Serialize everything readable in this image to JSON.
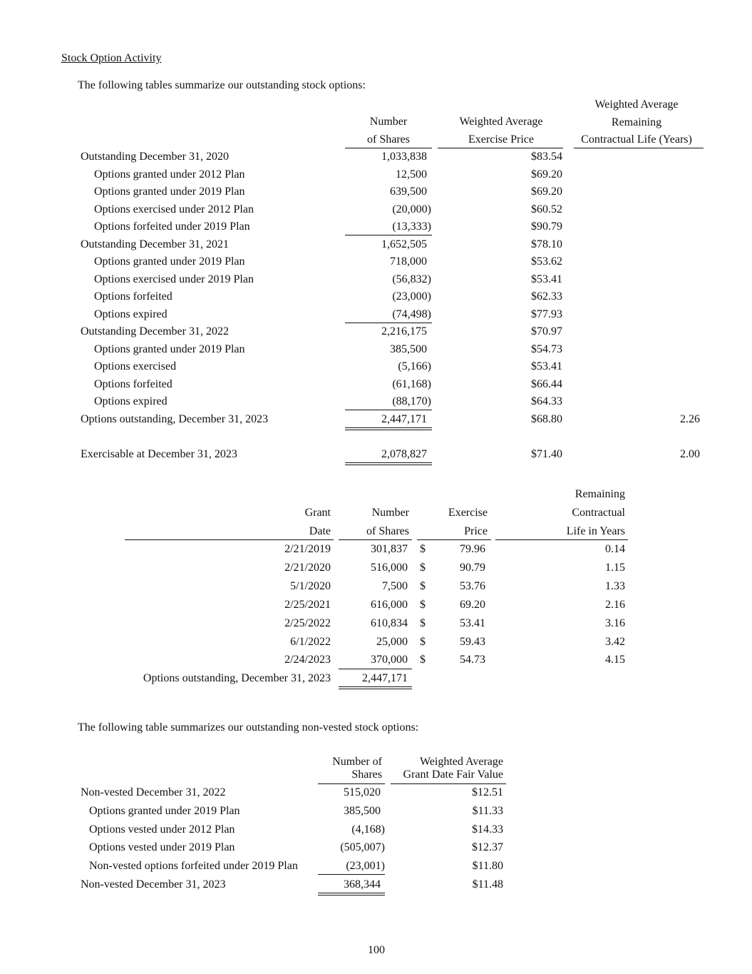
{
  "title": "Stock Option Activity",
  "intro1": "The following tables summarize our outstanding stock options:",
  "table1": {
    "headers": {
      "shares": [
        "Number",
        "of Shares"
      ],
      "price": [
        "Weighted Average",
        "Exercise Price"
      ],
      "life": [
        "Weighted Average",
        "Remaining",
        "Contractual Life (Years)"
      ]
    },
    "rows": [
      {
        "label": "Outstanding December 31, 2020",
        "indent": false,
        "shares": "1,033,838",
        "price": "$83.54",
        "life": ""
      },
      {
        "label": "Options granted under 2012 Plan",
        "indent": true,
        "shares": "12,500",
        "price": "$69.20",
        "life": ""
      },
      {
        "label": "Options granted under 2019 Plan",
        "indent": true,
        "shares": "639,500",
        "price": "$69.20",
        "life": ""
      },
      {
        "label": "Options exercised under 2012 Plan",
        "indent": true,
        "shares": "(20,000)",
        "price": "$60.52",
        "life": ""
      },
      {
        "label": "Options forfeited under 2019 Plan",
        "indent": true,
        "shares": "(13,333)",
        "price": "$90.79",
        "life": "",
        "rule": "single"
      },
      {
        "label": "Outstanding December 31, 2021",
        "indent": false,
        "shares": "1,652,505",
        "price": "$78.10",
        "life": ""
      },
      {
        "label": "Options granted under 2019 Plan",
        "indent": true,
        "shares": "718,000",
        "price": "$53.62",
        "life": ""
      },
      {
        "label": "Options exercised under 2019 Plan",
        "indent": true,
        "shares": "(56,832)",
        "price": "$53.41",
        "life": ""
      },
      {
        "label": "Options forfeited",
        "indent": true,
        "shares": "(23,000)",
        "price": "$62.33",
        "life": ""
      },
      {
        "label": "Options expired",
        "indent": true,
        "shares": "(74,498)",
        "price": "$77.93",
        "life": "",
        "rule": "single"
      },
      {
        "label": "Outstanding December 31, 2022",
        "indent": false,
        "shares": "2,216,175",
        "price": "$70.97",
        "life": ""
      },
      {
        "label": "Options granted under 2019 Plan",
        "indent": true,
        "shares": "385,500",
        "price": "$54.73",
        "life": ""
      },
      {
        "label": "Options exercised",
        "indent": true,
        "shares": "(5,166)",
        "price": "$53.41",
        "life": ""
      },
      {
        "label": "Options forfeited",
        "indent": true,
        "shares": "(61,168)",
        "price": "$66.44",
        "life": ""
      },
      {
        "label": "Options expired",
        "indent": true,
        "shares": "(88,170)",
        "price": "$64.33",
        "life": "",
        "rule": "single"
      },
      {
        "label": "Options outstanding, December 31, 2023",
        "indent": false,
        "shares": "2,447,171",
        "price": "$68.80",
        "life": "2.26",
        "rule": "double"
      },
      {
        "label": "Exercisable at December 31, 2023",
        "indent": false,
        "shares": "2,078,827",
        "price": "$71.40",
        "life": "2.00",
        "rule": "double"
      }
    ]
  },
  "table2": {
    "headers": {
      "date": [
        "Grant",
        "Date"
      ],
      "shares": [
        "Number",
        "of Shares"
      ],
      "price": [
        "Exercise",
        "Price"
      ],
      "life": [
        "Remaining",
        "Contractual",
        "Life in Years"
      ]
    },
    "rows": [
      {
        "date": "2/21/2019",
        "shares": "301,837",
        "currency": "$",
        "price": "79.96",
        "life": "0.14"
      },
      {
        "date": "2/21/2020",
        "shares": "516,000",
        "currency": "$",
        "price": "90.79",
        "life": "1.15"
      },
      {
        "date": "5/1/2020",
        "shares": "7,500",
        "currency": "$",
        "price": "53.76",
        "life": "1.33"
      },
      {
        "date": "2/25/2021",
        "shares": "616,000",
        "currency": "$",
        "price": "69.20",
        "life": "2.16"
      },
      {
        "date": "2/25/2022",
        "shares": "610,834",
        "currency": "$",
        "price": "53.41",
        "life": "3.16"
      },
      {
        "date": "6/1/2022",
        "shares": "25,000",
        "currency": "$",
        "price": "59.43",
        "life": "3.42"
      },
      {
        "date": "2/24/2023",
        "shares": "370,000",
        "currency": "$",
        "price": "54.73",
        "life": "4.15"
      }
    ],
    "total": {
      "label": "Options outstanding, December 31, 2023",
      "shares": "2,447,171"
    }
  },
  "intro2": "The following table summarizes our outstanding non-vested stock options:",
  "table3": {
    "headers": {
      "shares": [
        "Number of",
        "Shares"
      ],
      "value": [
        "Weighted Average",
        "Grant Date Fair Value"
      ]
    },
    "rows": [
      {
        "label": "Non-vested December 31, 2022",
        "indent": false,
        "shares": "515,020",
        "value": "$12.51"
      },
      {
        "label": "Options granted under 2019 Plan",
        "indent": true,
        "shares": "385,500",
        "value": "$11.33"
      },
      {
        "label": "Options vested under 2012 Plan",
        "indent": true,
        "shares": "(4,168)",
        "value": "$14.33"
      },
      {
        "label": "Options vested under 2019 Plan",
        "indent": true,
        "shares": "(505,007)",
        "value": "$12.37"
      },
      {
        "label": "Non-vested options forfeited under 2019 Plan",
        "indent": true,
        "shares": "(23,001)",
        "value": "$11.80",
        "rule": "single"
      },
      {
        "label": "Non-vested December 31, 2023",
        "indent": false,
        "shares": "368,344",
        "value": "$11.48",
        "rule": "double"
      }
    ]
  },
  "page_number": "100"
}
